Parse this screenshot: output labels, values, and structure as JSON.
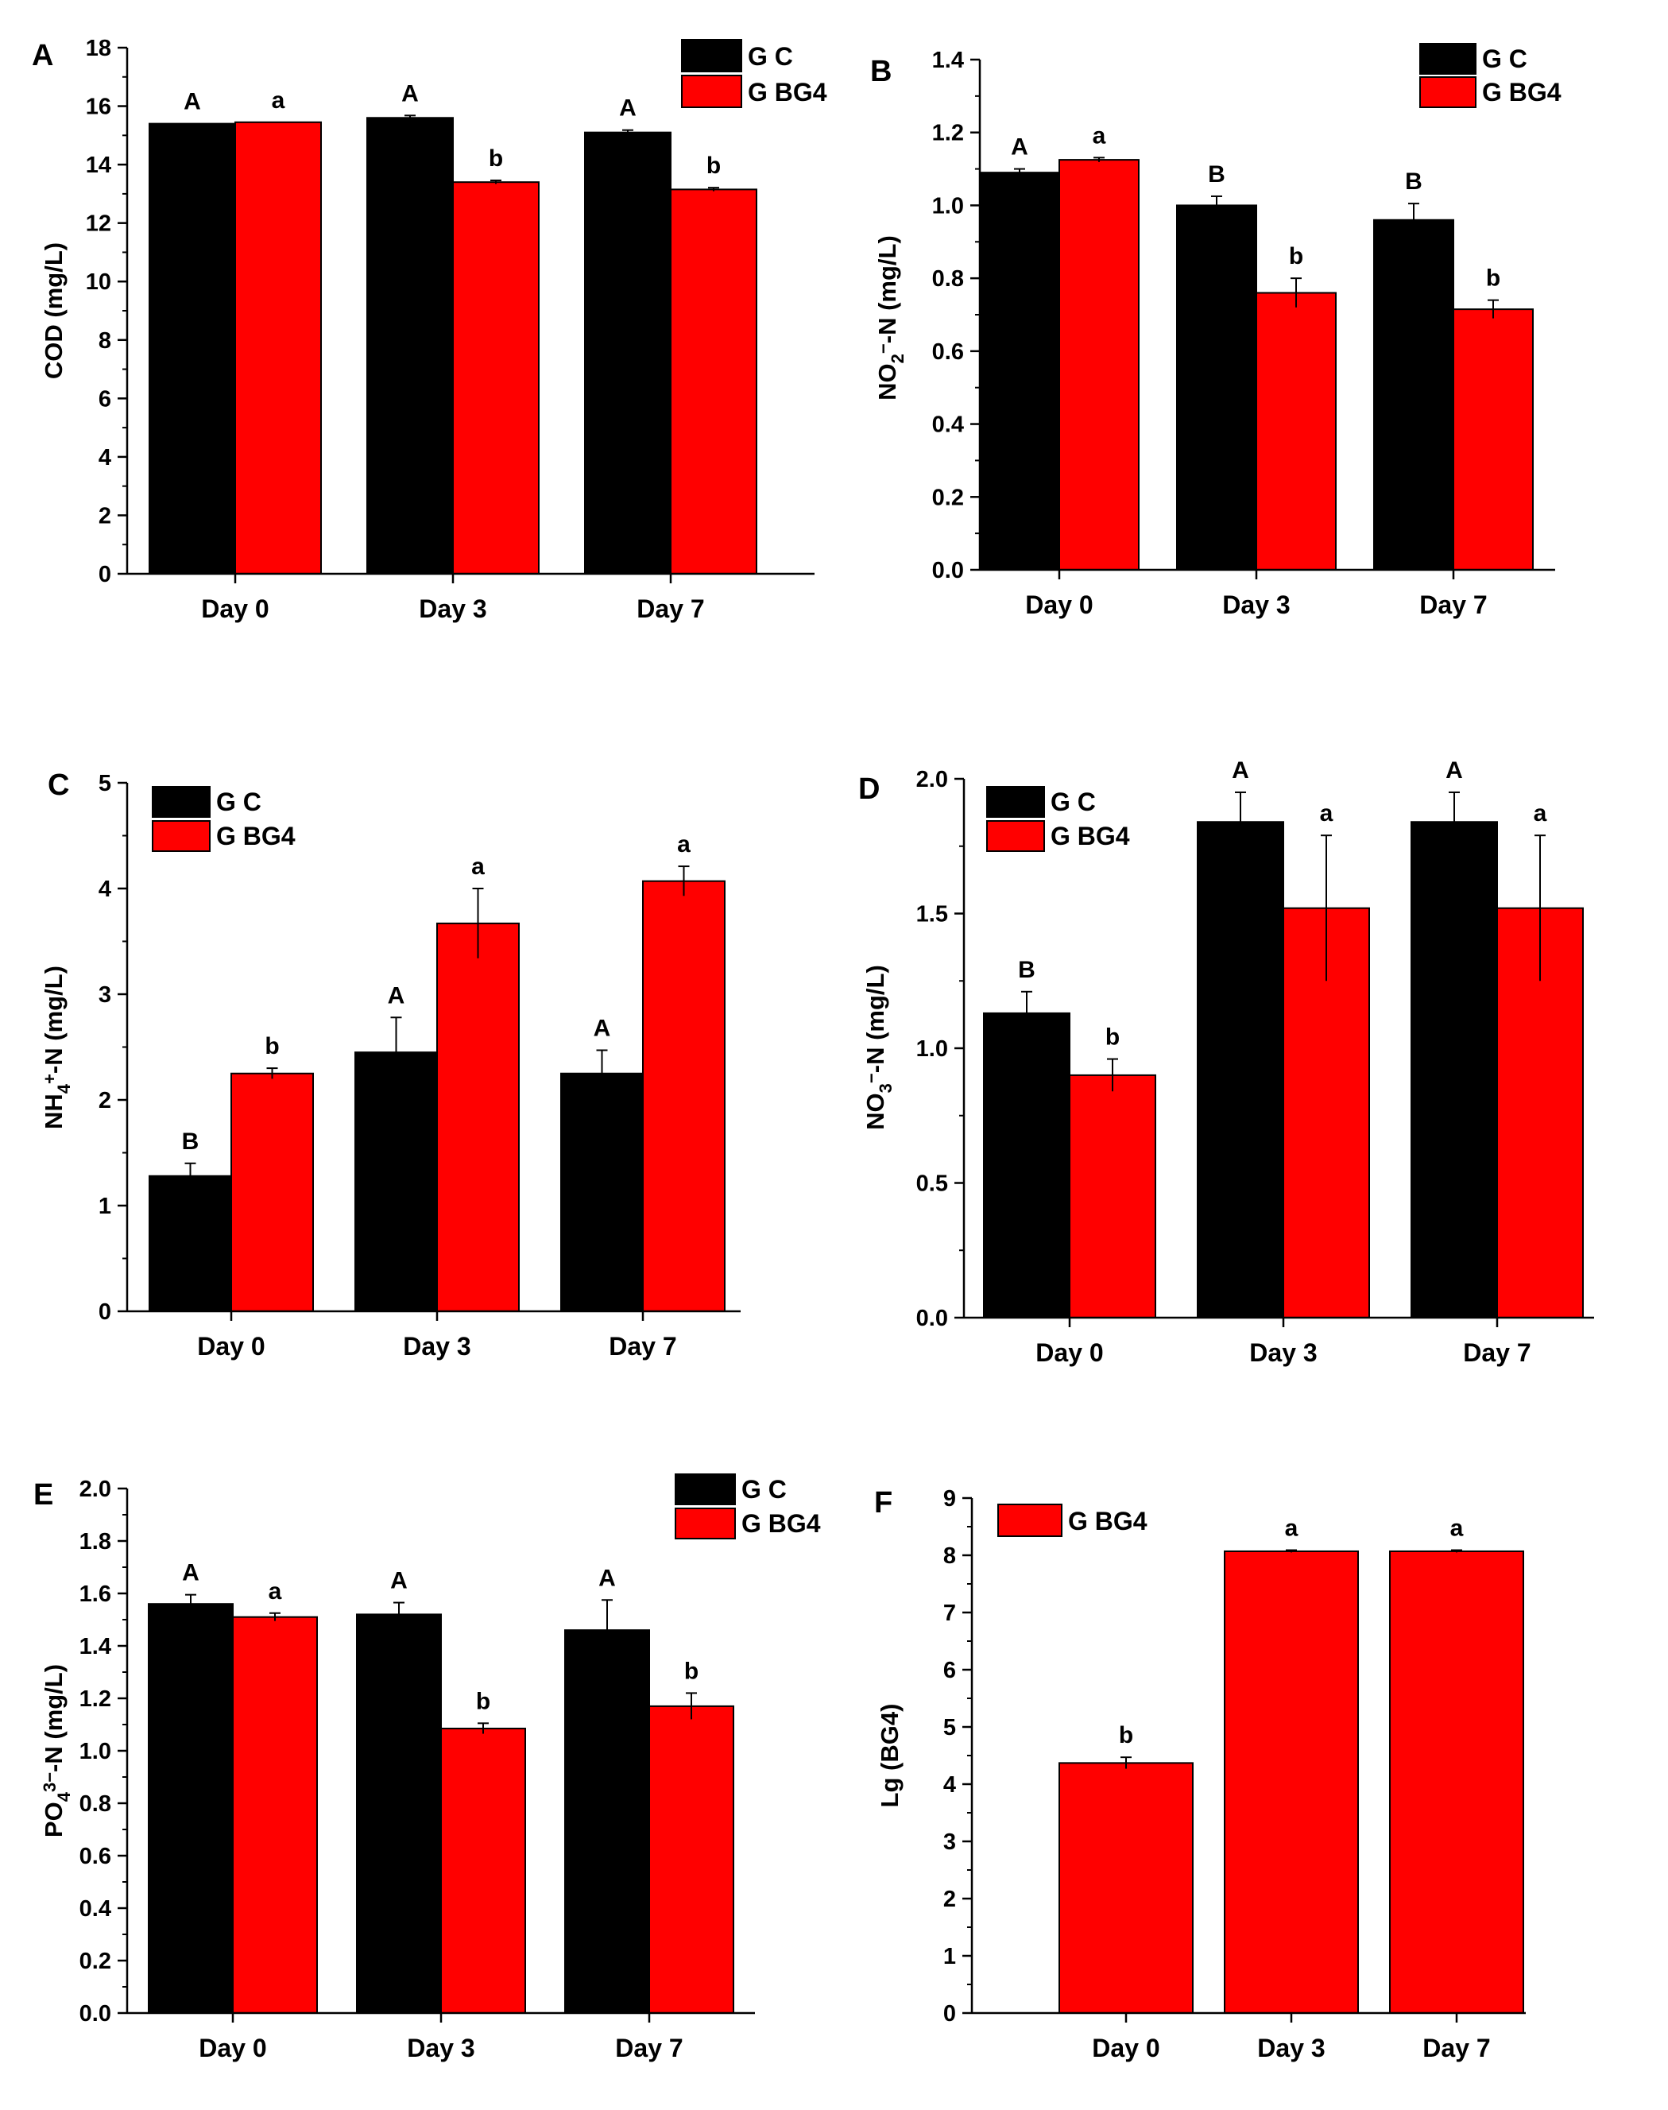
{
  "chart_data": [
    {
      "panel": "A",
      "type": "bar",
      "categories": [
        "Day 0",
        "Day 3",
        "Day 7"
      ],
      "ylabel": "COD (mg/L)",
      "ylim": [
        0,
        18
      ],
      "yticks": [
        0,
        2,
        4,
        6,
        8,
        10,
        12,
        14,
        16,
        18
      ],
      "legend": {
        "placement": "top-right"
      },
      "series": [
        {
          "name": "G C",
          "color": "#000000",
          "values": [
            15.4,
            15.6,
            15.1
          ],
          "errors": [
            0,
            0.08,
            0.08
          ],
          "letters": [
            "A",
            "A",
            "A"
          ]
        },
        {
          "name": "G BG4",
          "color": "#ff0000",
          "values": [
            15.45,
            13.4,
            13.15
          ],
          "errors": [
            0,
            0.06,
            0.06
          ],
          "letters": [
            "a",
            "b",
            "b"
          ]
        }
      ]
    },
    {
      "panel": "B",
      "type": "bar",
      "categories": [
        "Day 0",
        "Day 3",
        "Day 7"
      ],
      "ylabel": "NO2−-N (mg/L)",
      "ylim": [
        0,
        1.4
      ],
      "yticks": [
        0.0,
        0.2,
        0.4,
        0.6,
        0.8,
        1.0,
        1.2,
        1.4
      ],
      "legend": {
        "placement": "top-right"
      },
      "series": [
        {
          "name": "G C",
          "color": "#000000",
          "values": [
            1.09,
            1.0,
            0.96
          ],
          "errors": [
            0.01,
            0.025,
            0.045
          ],
          "letters": [
            "A",
            "B",
            "B"
          ]
        },
        {
          "name": "G BG4",
          "color": "#ff0000",
          "values": [
            1.125,
            0.76,
            0.715
          ],
          "errors": [
            0.006,
            0.04,
            0.025
          ],
          "letters": [
            "a",
            "b",
            "b"
          ]
        }
      ]
    },
    {
      "panel": "C",
      "type": "bar",
      "categories": [
        "Day 0",
        "Day 3",
        "Day 7"
      ],
      "ylabel": "NH4+-N (mg/L)",
      "ylim": [
        0,
        5
      ],
      "yticks": [
        0,
        1,
        2,
        3,
        4,
        5
      ],
      "legend": {
        "placement": "top-left"
      },
      "series": [
        {
          "name": "G C",
          "color": "#000000",
          "values": [
            1.28,
            2.45,
            2.25
          ],
          "errors": [
            0.12,
            0.33,
            0.22
          ],
          "letters": [
            "B",
            "A",
            "A"
          ]
        },
        {
          "name": "G BG4",
          "color": "#ff0000",
          "values": [
            2.25,
            3.67,
            4.07
          ],
          "errors": [
            0.05,
            0.33,
            0.14
          ],
          "letters": [
            "b",
            "a",
            "a"
          ]
        }
      ]
    },
    {
      "panel": "D",
      "type": "bar",
      "categories": [
        "Day 0",
        "Day 3",
        "Day 7"
      ],
      "ylabel": "NO3−-N (mg/L)",
      "ylim": [
        0,
        2.0
      ],
      "yticks": [
        0.0,
        0.5,
        1.0,
        1.5,
        2.0
      ],
      "legend": {
        "placement": "top-left"
      },
      "series": [
        {
          "name": "G C",
          "color": "#000000",
          "values": [
            1.13,
            1.84,
            1.84
          ],
          "errors": [
            0.08,
            0.11,
            0.11
          ],
          "letters": [
            "B",
            "A",
            "A"
          ]
        },
        {
          "name": "G BG4",
          "color": "#ff0000",
          "values": [
            0.9,
            1.52,
            1.52
          ],
          "errors": [
            0.06,
            0.27,
            0.27
          ],
          "letters": [
            "b",
            "a",
            "a"
          ]
        }
      ]
    },
    {
      "panel": "E",
      "type": "bar",
      "categories": [
        "Day 0",
        "Day 3",
        "Day 7"
      ],
      "ylabel": "PO43−-N (mg/L)",
      "ylim": [
        0,
        2.0
      ],
      "yticks": [
        0.0,
        0.2,
        0.4,
        0.6,
        0.8,
        1.0,
        1.2,
        1.4,
        1.6,
        1.8,
        2.0
      ],
      "legend": {
        "placement": "top-right"
      },
      "series": [
        {
          "name": "G C",
          "color": "#000000",
          "values": [
            1.56,
            1.52,
            1.46
          ],
          "errors": [
            0.035,
            0.045,
            0.115
          ],
          "letters": [
            "A",
            "A",
            "A"
          ]
        },
        {
          "name": "G BG4",
          "color": "#ff0000",
          "values": [
            1.51,
            1.085,
            1.17
          ],
          "errors": [
            0.015,
            0.02,
            0.05
          ],
          "letters": [
            "a",
            "b",
            "b"
          ]
        }
      ]
    },
    {
      "panel": "F",
      "type": "bar",
      "categories": [
        "Day 0",
        "Day 3",
        "Day 7"
      ],
      "ylabel": "Lg (BG4)",
      "ylim": [
        0,
        9
      ],
      "yticks": [
        0,
        1,
        2,
        3,
        4,
        5,
        6,
        7,
        8,
        9
      ],
      "legend": {
        "placement": "top-left"
      },
      "series": [
        {
          "name": "G BG4",
          "color": "#ff0000",
          "values": [
            4.37,
            8.07,
            8.07
          ],
          "errors": [
            0.1,
            0.02,
            0.02
          ],
          "letters": [
            "b",
            "a",
            "a"
          ]
        }
      ]
    }
  ]
}
